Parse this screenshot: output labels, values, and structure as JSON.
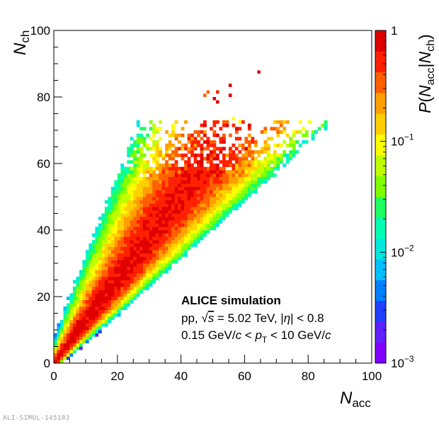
{
  "chart_data": {
    "type": "heatmap",
    "x_axis": {
      "label_main": "N",
      "label_sub": "acc",
      "range": [
        0,
        100
      ],
      "ticks": [
        0,
        20,
        40,
        60,
        80,
        100
      ],
      "tick_labels": [
        "0",
        "20",
        "40",
        "60",
        "80",
        "100"
      ]
    },
    "y_axis": {
      "label_main": "N",
      "label_sub": "ch",
      "range": [
        0,
        100
      ],
      "ticks": [
        0,
        20,
        40,
        60,
        80,
        100
      ],
      "tick_labels": [
        "0",
        "20",
        "40",
        "60",
        "80",
        "100"
      ]
    },
    "z_axis": {
      "label_parts": [
        "P",
        "(",
        "N",
        "acc",
        "|",
        "N",
        "ch",
        ")"
      ],
      "scale": "log",
      "range": [
        0.001,
        1
      ],
      "ticks": [
        {
          "value": 0.001,
          "base": "10",
          "exp": "−3"
        },
        {
          "value": 0.01,
          "base": "10",
          "exp": "−2"
        },
        {
          "value": 0.1,
          "base": "10",
          "exp": "−1"
        },
        {
          "value": 1,
          "base": "1",
          "exp": ""
        }
      ]
    },
    "palette": [
      "#7f00ff",
      "#6020ff",
      "#2040ff",
      "#0080ff",
      "#00c0ff",
      "#00e8e0",
      "#00ffb0",
      "#20ff60",
      "#80ff00",
      "#c0ff00",
      "#ffff00",
      "#ffd000",
      "#ffa000",
      "#ff6000",
      "#ff2000",
      "#e00000"
    ],
    "band_model": {
      "description_free": true,
      "mean_slope": 1.27,
      "width_per_unit_y": 0.09,
      "y_max_dense": 72,
      "sparse_points": [
        {
          "x": 47,
          "y": 80,
          "z": 0.4
        },
        {
          "x": 48,
          "y": 81,
          "z": 0.35
        },
        {
          "x": 51,
          "y": 81,
          "z": 0.5
        },
        {
          "x": 50,
          "y": 79,
          "z": 0.8
        },
        {
          "x": 51,
          "y": 78,
          "z": 1.0
        },
        {
          "x": 55,
          "y": 83,
          "z": 1.0
        },
        {
          "x": 55,
          "y": 80,
          "z": 0.9
        },
        {
          "x": 64,
          "y": 87,
          "z": 1.0
        },
        {
          "x": 56,
          "y": 73,
          "z": 0.1
        },
        {
          "x": 58,
          "y": 72,
          "z": 0.1
        }
      ]
    },
    "annotations": {
      "line1": "ALICE simulation",
      "line2_parts": [
        "pp, ",
        "√",
        "s",
        " = 5.02 TeV, |",
        "η",
        "| < 0.8"
      ],
      "line3_parts": [
        "0.15 GeV/",
        "c",
        " < ",
        "p",
        "T",
        " < 10 GeV/",
        "c"
      ]
    }
  },
  "watermark": "ALI-SIMUL-145103"
}
